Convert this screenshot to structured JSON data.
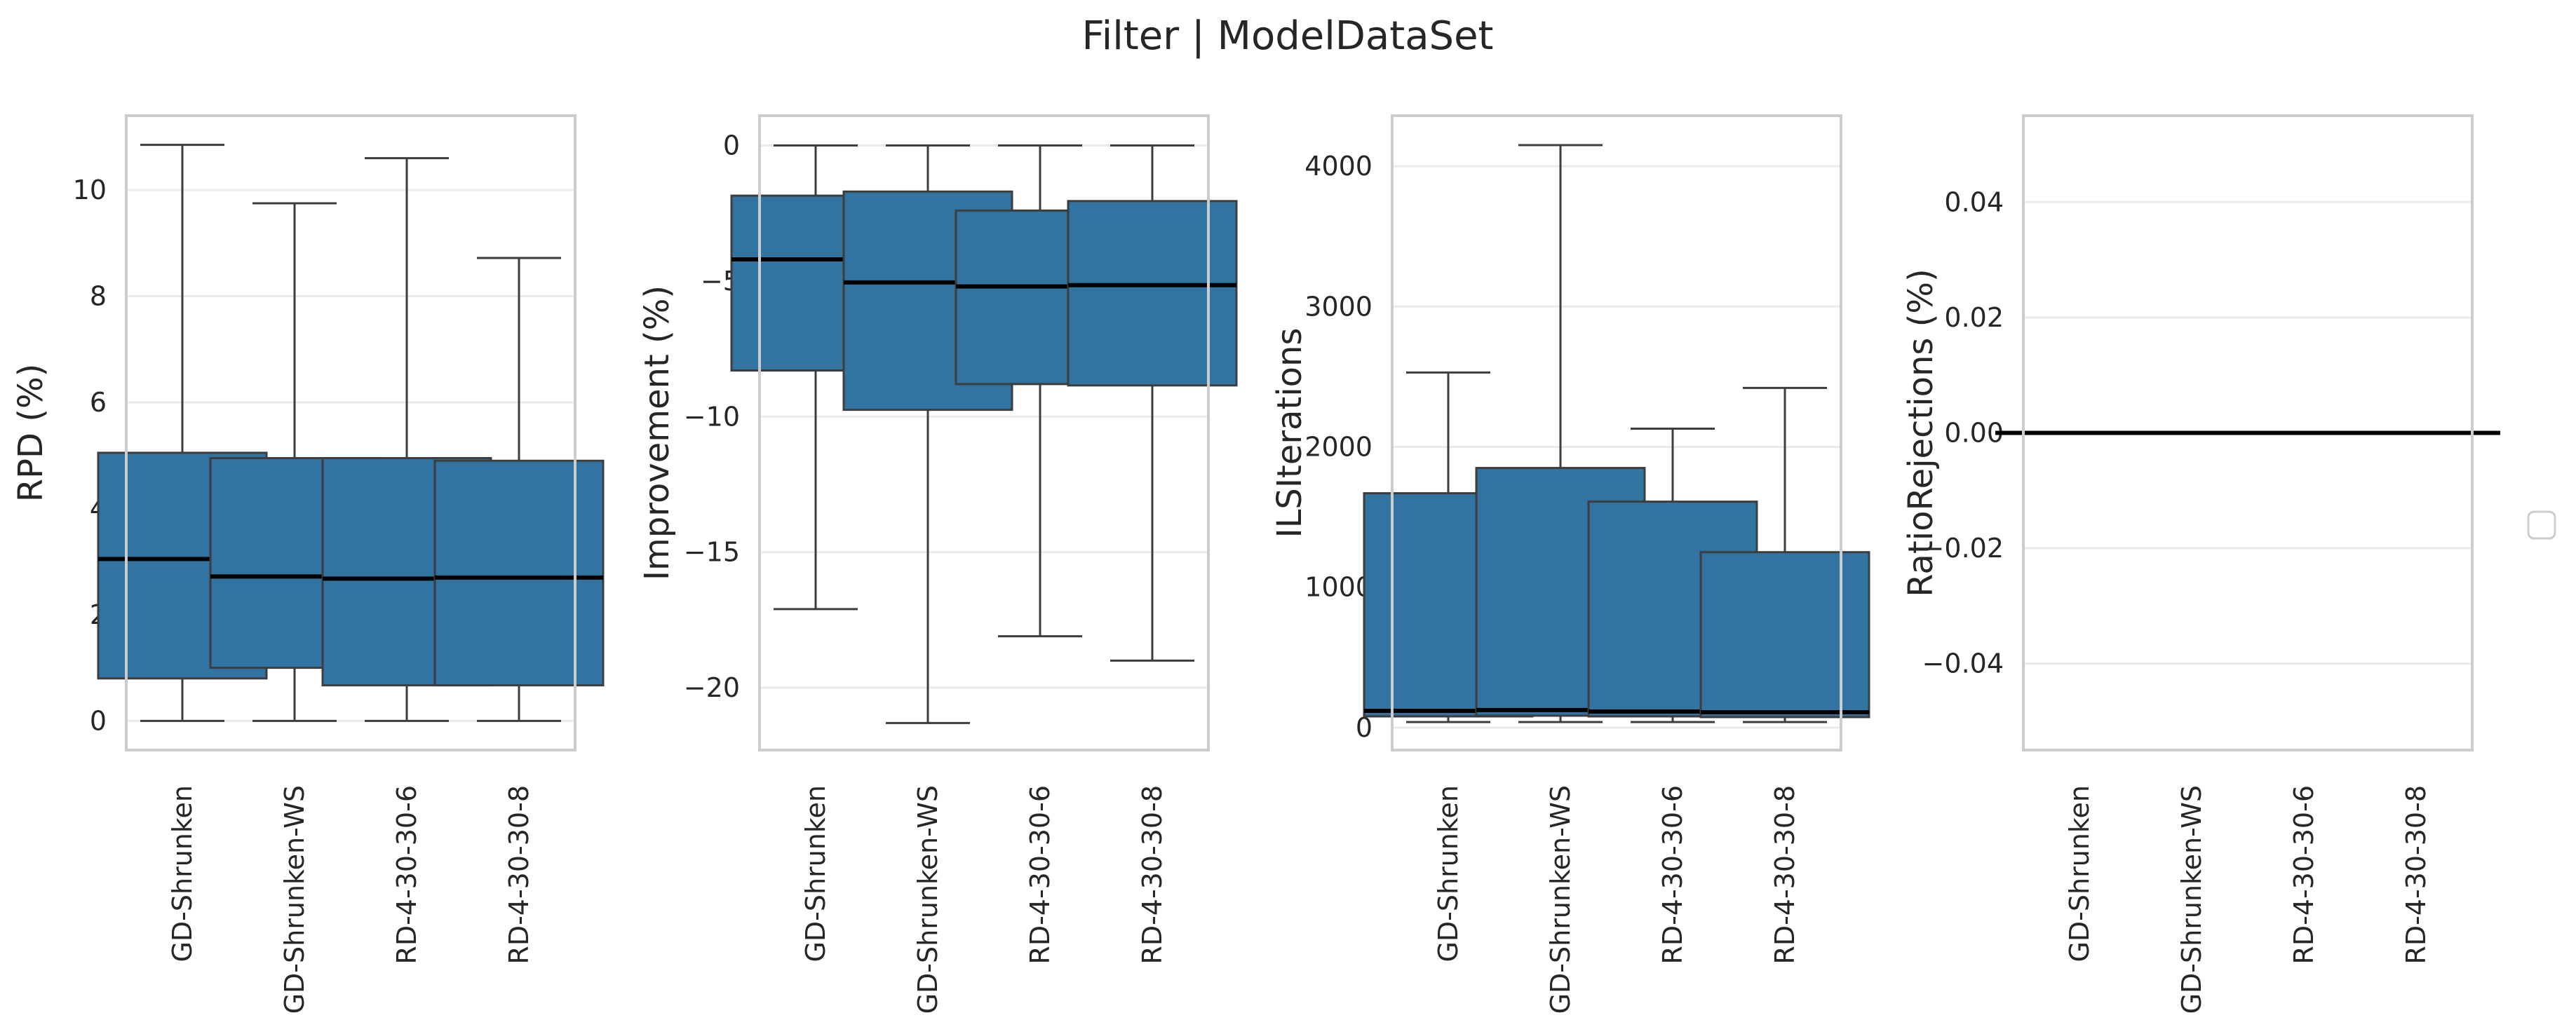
{
  "title": "Filter | ModelDataSet",
  "legend": {
    "placement": "right",
    "entries": []
  },
  "colors": {
    "box": "#3274a1",
    "median": "#000000",
    "whisker": "#3d3d3d",
    "frame": "#cccccc",
    "grid": "#ebebeb"
  },
  "chart_data": [
    {
      "type": "box",
      "ylabel": "RPD (%)",
      "xlabel": "",
      "categories": [
        "GD-Shrunken",
        "GD-Shrunken-WS",
        "RD-4-30-30-6",
        "RD-4-30-30-8"
      ],
      "ylim": [
        -0.55,
        11.4
      ],
      "yticks": [
        0,
        2,
        4,
        6,
        8,
        10
      ],
      "ytick_labels": [
        "0",
        "2",
        "4",
        "6",
        "8",
        "10"
      ],
      "grid": true,
      "boxes": [
        {
          "whislo": 0.0,
          "q1": 0.8,
          "med": 3.05,
          "q3": 5.05,
          "whishi": 10.85
        },
        {
          "whislo": 0.0,
          "q1": 1.0,
          "med": 2.72,
          "q3": 4.95,
          "whishi": 9.75
        },
        {
          "whislo": 0.0,
          "q1": 0.67,
          "med": 2.68,
          "q3": 4.95,
          "whishi": 10.6
        },
        {
          "whislo": 0.0,
          "q1": 0.67,
          "med": 2.7,
          "q3": 4.9,
          "whishi": 8.72
        }
      ]
    },
    {
      "type": "box",
      "ylabel": "Improvement (%)",
      "xlabel": "",
      "categories": [
        "GD-Shrunken",
        "GD-Shrunken-WS",
        "RD-4-30-30-6",
        "RD-4-30-30-8"
      ],
      "ylim": [
        -22.3,
        1.1
      ],
      "yticks": [
        0,
        -5,
        -10,
        -15,
        -20
      ],
      "ytick_labels": [
        "0",
        "−5",
        "−10",
        "−15",
        "−20"
      ],
      "grid": true,
      "boxes": [
        {
          "whislo": -17.1,
          "q1": -8.3,
          "med": -4.2,
          "q3": -1.85,
          "whishi": 0.0
        },
        {
          "whislo": -21.3,
          "q1": -9.75,
          "med": -5.05,
          "q3": -1.7,
          "whishi": 0.0
        },
        {
          "whislo": -18.1,
          "q1": -8.8,
          "med": -5.2,
          "q3": -2.4,
          "whishi": 0.0
        },
        {
          "whislo": -19.0,
          "q1": -8.85,
          "med": -5.15,
          "q3": -2.05,
          "whishi": 0.0
        }
      ]
    },
    {
      "type": "box",
      "ylabel": "ILSIterations",
      "xlabel": "",
      "categories": [
        "GD-Shrunken",
        "GD-Shrunken-WS",
        "RD-4-30-30-6",
        "RD-4-30-30-8"
      ],
      "ylim": [
        -160,
        4360
      ],
      "yticks": [
        0,
        1000,
        2000,
        3000,
        4000
      ],
      "ytick_labels": [
        "0",
        "1000",
        "2000",
        "3000",
        "4000"
      ],
      "grid": true,
      "boxes": [
        {
          "whislo": 40,
          "q1": 80,
          "med": 120,
          "q3": 1670,
          "whishi": 2530
        },
        {
          "whislo": 40,
          "q1": 85,
          "med": 125,
          "q3": 1850,
          "whishi": 4150
        },
        {
          "whislo": 40,
          "q1": 80,
          "med": 115,
          "q3": 1610,
          "whishi": 2130
        },
        {
          "whislo": 40,
          "q1": 75,
          "med": 110,
          "q3": 1250,
          "whishi": 2420
        }
      ]
    },
    {
      "type": "box",
      "ylabel": "RatioRejections (%)",
      "xlabel": "",
      "categories": [
        "GD-Shrunken",
        "GD-Shrunken-WS",
        "RD-4-30-30-6",
        "RD-4-30-30-8"
      ],
      "ylim": [
        -0.055,
        0.055
      ],
      "yticks": [
        0.04,
        0.02,
        0.0,
        -0.02,
        -0.04
      ],
      "ytick_labels": [
        "0.04",
        "0.02",
        "0.00",
        "−0.02",
        "−0.04"
      ],
      "grid": true,
      "boxes": [
        {
          "whislo": 0.0,
          "q1": 0.0,
          "med": 0.0,
          "q3": 0.0,
          "whishi": 0.0
        },
        {
          "whislo": 0.0,
          "q1": 0.0,
          "med": 0.0,
          "q3": 0.0,
          "whishi": 0.0
        },
        {
          "whislo": 0.0,
          "q1": 0.0,
          "med": 0.0,
          "q3": 0.0,
          "whishi": 0.0
        },
        {
          "whislo": 0.0,
          "q1": 0.0,
          "med": 0.0,
          "q3": 0.0,
          "whishi": 0.0
        }
      ]
    }
  ]
}
